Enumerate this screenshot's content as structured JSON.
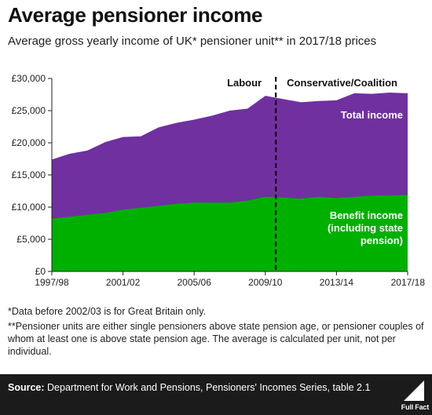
{
  "header": {
    "title": "Average pensioner income",
    "subtitle": "Average gross yearly income of UK* pensioner unit** in 2017/18 prices"
  },
  "chart_data": {
    "type": "area",
    "title": "Average pensioner income",
    "x": [
      "1997/98",
      "1998/99",
      "1999/00",
      "2000/01",
      "2001/02",
      "2002/03",
      "2003/04",
      "2004/05",
      "2005/06",
      "2006/07",
      "2007/08",
      "2008/09",
      "2009/10",
      "2010/11",
      "2011/12",
      "2012/13",
      "2013/14",
      "2014/15",
      "2015/16",
      "2016/17",
      "2017/18"
    ],
    "x_tick_labels": [
      "1997/98",
      "2001/02",
      "2005/06",
      "2009/10",
      "2013/14",
      "2017/18"
    ],
    "y_tick_labels": [
      "£0",
      "£5,000",
      "£10,000",
      "£15,000",
      "£20,000",
      "£25,000",
      "£30,000"
    ],
    "ylim": [
      0,
      30000
    ],
    "series": [
      {
        "name": "Total income",
        "color": "#7030a0",
        "values": [
          17400,
          18300,
          18800,
          20100,
          20900,
          21000,
          22400,
          23100,
          23600,
          24200,
          25000,
          25300,
          27300,
          26800,
          26300,
          26500,
          26600,
          27700,
          27600,
          27800,
          27700
        ]
      },
      {
        "name": "Benefit income (including state pension)",
        "label_lines": [
          "Benefit income",
          "(including state",
          "pension)"
        ],
        "color": "#00b000",
        "values": [
          8200,
          8500,
          8800,
          9100,
          9600,
          9900,
          10200,
          10500,
          10700,
          10700,
          10700,
          11000,
          11600,
          11500,
          11300,
          11600,
          11400,
          11600,
          11800,
          11800,
          11900
        ]
      }
    ],
    "annotations": {
      "left_era": "Labour",
      "right_era": "Conservative/Coalition",
      "divider_between": [
        "2009/10",
        "2010/11"
      ]
    },
    "grid": false
  },
  "notes": [
    "*Data before 2002/03 is for Great Britain only.",
    "**Pensioner units are either single pensioners above state pension age, or pensioner couples of whom at least one is above state pension age. The average is calculated per unit, not per individual."
  ],
  "footer": {
    "source_label": "Source:",
    "source_text": "Department for Work and Pensions, Pensioners' Incomes Series, table 2.1",
    "logo_text": "Full Fact"
  },
  "colors": {
    "total": "#7030a0",
    "benefit": "#00b000",
    "footer_bg": "#1b1b1b"
  }
}
